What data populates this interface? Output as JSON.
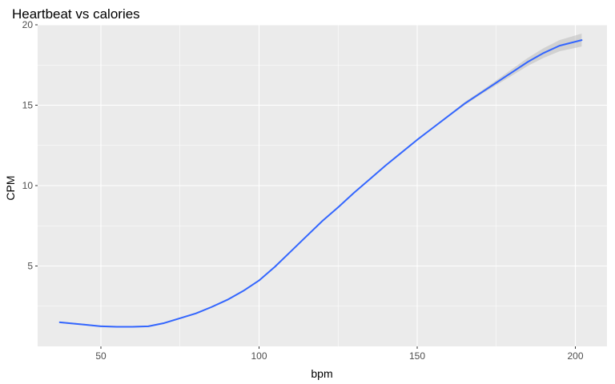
{
  "chart_data": {
    "type": "line",
    "title": "Heartbeat vs calories",
    "xlabel": "bpm",
    "ylabel": "CPM",
    "xlim": [
      30,
      210
    ],
    "ylim": [
      0,
      20
    ],
    "x_ticks": [
      50,
      100,
      150,
      200
    ],
    "x_tick_labels": [
      "50",
      "100",
      "150",
      "200"
    ],
    "y_ticks": [
      5,
      10,
      15,
      20
    ],
    "y_tick_labels": [
      "5",
      "10",
      "15",
      "20"
    ],
    "grid": true,
    "series": [
      {
        "x": [
          37,
          45,
          50,
          55,
          60,
          65,
          70,
          75,
          80,
          85,
          90,
          95,
          100,
          105,
          110,
          115,
          120,
          125,
          130,
          135,
          140,
          145,
          150,
          155,
          160,
          165,
          170,
          175,
          180,
          185,
          190,
          195,
          202
        ],
        "y": [
          1.5,
          1.35,
          1.25,
          1.22,
          1.22,
          1.25,
          1.45,
          1.75,
          2.05,
          2.45,
          2.9,
          3.45,
          4.1,
          4.95,
          5.9,
          6.85,
          7.8,
          8.65,
          9.55,
          10.4,
          11.25,
          12.05,
          12.85,
          13.6,
          14.35,
          15.1,
          15.75,
          16.4,
          17.05,
          17.7,
          18.25,
          18.7,
          19.05
        ],
        "se_lower": [
          1.45,
          1.3,
          1.2,
          1.17,
          1.17,
          1.2,
          1.4,
          1.7,
          2.0,
          2.4,
          2.85,
          3.4,
          4.05,
          4.9,
          5.85,
          6.8,
          7.75,
          8.6,
          9.5,
          10.35,
          11.2,
          12.0,
          12.8,
          13.55,
          14.3,
          15.0,
          15.65,
          16.25,
          16.85,
          17.45,
          17.95,
          18.35,
          18.65
        ],
        "se_upper": [
          1.55,
          1.4,
          1.3,
          1.27,
          1.27,
          1.3,
          1.5,
          1.8,
          2.1,
          2.5,
          2.95,
          3.5,
          4.15,
          5.0,
          5.95,
          6.9,
          7.85,
          8.7,
          9.6,
          10.45,
          11.3,
          12.1,
          12.9,
          13.65,
          14.4,
          15.2,
          15.85,
          16.55,
          17.25,
          17.95,
          18.55,
          19.05,
          19.45
        ]
      }
    ],
    "colors": {
      "panel_background": "#ebebeb",
      "grid_major": "#ffffff",
      "line": "#3366ff",
      "ribbon": "#c0c0c0"
    }
  }
}
